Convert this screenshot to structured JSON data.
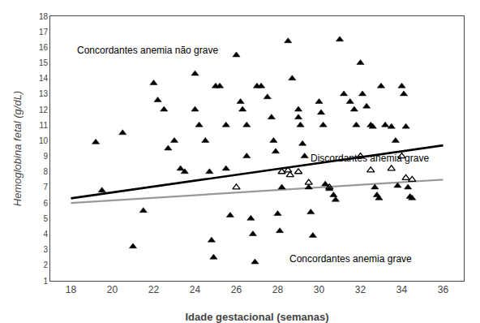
{
  "chart_data": {
    "type": "scatter",
    "xlabel": "Idade gestacional (semanas)",
    "ylabel": "Hemoglobina fetal (g/dL)",
    "xlim": [
      17,
      37
    ],
    "ylim": [
      1,
      18
    ],
    "xticks": [
      18,
      20,
      22,
      24,
      26,
      28,
      30,
      32,
      34,
      36
    ],
    "yticks": [
      1,
      2,
      3,
      4,
      5,
      6,
      7,
      8,
      9,
      10,
      11,
      12,
      13,
      14,
      15,
      16,
      17,
      18
    ],
    "grid": false,
    "series": [
      {
        "type": "scatter",
        "marker": "triangle-up",
        "color": "#000000",
        "x": [
          19.2,
          19.5,
          20.5,
          21.0,
          21.5,
          22.0,
          22.2,
          22.5,
          22.7,
          23.0,
          23.3,
          23.5,
          24.0,
          24.0,
          24.2,
          24.5,
          24.7,
          24.8,
          24.9,
          25.0,
          25.2,
          25.5,
          25.5,
          25.7,
          26.0,
          26.2,
          26.3,
          26.5,
          26.5,
          26.7,
          26.8,
          26.9,
          27.0,
          27.2,
          27.5,
          27.7,
          27.8,
          27.9,
          28.0,
          28.1,
          28.2,
          28.5,
          28.7,
          29.0,
          29.0,
          29.1,
          29.2,
          29.3,
          29.5,
          29.6,
          29.7,
          30.0,
          30.1,
          30.2,
          30.3,
          30.5,
          30.7,
          30.8,
          31.0,
          31.2,
          31.5,
          31.7,
          31.8,
          32.0,
          32.1,
          32.3,
          32.5,
          32.6,
          32.7,
          32.8,
          32.9,
          33.0,
          33.2,
          33.5,
          33.7,
          33.8,
          34.0,
          34.1,
          34.2,
          34.3,
          34.4,
          34.5
        ],
        "values": [
          9.9,
          6.8,
          10.5,
          3.2,
          5.5,
          13.7,
          12.6,
          12.0,
          9.5,
          10.0,
          8.2,
          8.0,
          14.3,
          12.0,
          11.0,
          10.0,
          8.0,
          3.6,
          2.5,
          13.5,
          13.5,
          11.0,
          8.2,
          5.2,
          15.5,
          12.5,
          12.0,
          11.0,
          9.0,
          5.0,
          4.0,
          2.2,
          13.5,
          13.5,
          12.8,
          11.5,
          10.0,
          9.3,
          5.3,
          4.2,
          7.0,
          16.4,
          14.0,
          12.0,
          11.5,
          11.0,
          9.8,
          9.0,
          7.0,
          5.4,
          3.9,
          12.5,
          11.8,
          11.0,
          7.2,
          6.9,
          6.5,
          6.2,
          16.5,
          13.0,
          12.5,
          12.0,
          11.0,
          15.0,
          13.0,
          12.2,
          11.0,
          10.9,
          7.0,
          6.5,
          6.3,
          13.5,
          11.0,
          10.9,
          10.0,
          7.1,
          13.5,
          13.0,
          10.9,
          7.0,
          6.4,
          6.3
        ]
      },
      {
        "type": "scatter",
        "marker": "triangle-up-open",
        "color": "#000000",
        "x": [
          26.0,
          28.2,
          28.5,
          28.6,
          29.0,
          29.5,
          30.5,
          32.0,
          32.5,
          33.5,
          34.0,
          34.2,
          34.5
        ],
        "values": [
          7.0,
          8.0,
          8.1,
          7.8,
          8.0,
          7.3,
          7.0,
          9.0,
          8.1,
          8.2,
          9.0,
          7.6,
          7.5
        ]
      },
      {
        "type": "line",
        "color": "#000000",
        "x": [
          18,
          36
        ],
        "values": [
          6.3,
          9.7
        ]
      },
      {
        "type": "line",
        "color": "#999999",
        "x": [
          18,
          36
        ],
        "values": [
          6.0,
          7.5
        ]
      }
    ],
    "annotations": [
      {
        "text": "Concordantes anemia não grave",
        "x": 18.2,
        "y": 15.8
      },
      {
        "text": "Discordantes anemia grave",
        "x": 29.5,
        "y": 8.85
      },
      {
        "text": "Concordantes anemia grave",
        "x": 28.5,
        "y": 2.4
      }
    ]
  }
}
